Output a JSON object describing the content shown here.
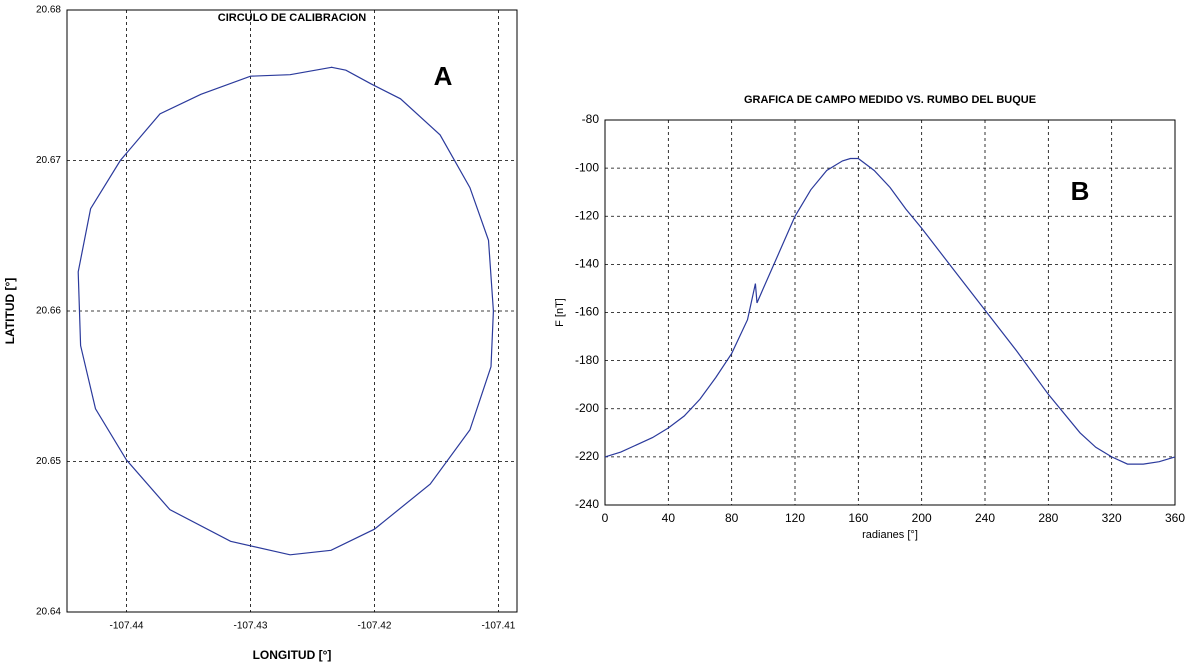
{
  "chart_data": [
    {
      "type": "line",
      "title": "CIRCULO DE CALIBRACION",
      "x_label": "LONGITUD [°]",
      "y_label": "LATITUD [°]",
      "annotation": "A",
      "x": [
        -107.4234,
        -107.4268,
        -107.43,
        -107.434,
        -107.4373,
        -107.4405,
        -107.4429,
        -107.4439,
        -107.4437,
        -107.4425,
        -107.44,
        -107.4365,
        -107.4316,
        -107.4268,
        -107.4235,
        -107.42,
        -107.4155,
        -107.4123,
        -107.4106,
        -107.4104,
        -107.4108,
        -107.4123,
        -107.4147,
        -107.4179,
        -107.4203,
        -107.4223,
        -107.4235
      ],
      "values": [
        20.6762,
        20.6757,
        20.6756,
        20.6744,
        20.6731,
        20.67,
        20.6668,
        20.6626,
        20.6577,
        20.6535,
        20.6501,
        20.6468,
        20.6447,
        20.6438,
        20.6441,
        20.6455,
        20.6485,
        20.6521,
        20.6563,
        20.66,
        20.6647,
        20.6682,
        20.6717,
        20.6741,
        20.6751,
        20.676,
        20.6762
      ],
      "color": "#2b3a9c",
      "xlim": [
        -107.4448,
        -107.4085
      ],
      "xticks": [
        -107.44,
        -107.43,
        -107.42,
        -107.41
      ],
      "ylim": [
        20.64,
        20.68
      ],
      "yticks": [
        20.64,
        20.65,
        20.66,
        20.67,
        20.68
      ],
      "grid": true
    },
    {
      "type": "line",
      "title": "GRAFICA DE CAMPO MEDIDO VS. RUMBO DEL BUQUE",
      "x_label": "radianes [°]",
      "y_label": "F [nT]",
      "annotation": "B",
      "x": [
        0,
        10,
        20,
        30,
        40,
        50,
        60,
        70,
        80,
        90,
        95,
        96,
        100,
        110,
        120,
        130,
        140,
        150,
        155,
        160,
        170,
        180,
        190,
        200,
        220,
        240,
        260,
        280,
        300,
        310,
        320,
        330,
        340,
        350,
        360
      ],
      "values": [
        -220,
        -218,
        -215,
        -212,
        -208,
        -203,
        -196,
        -187,
        -177,
        -163,
        -148,
        -156,
        -150,
        -135,
        -120,
        -109,
        -101,
        -97,
        -96,
        -96,
        -101,
        -108,
        -117,
        -125,
        -142,
        -159,
        -176,
        -194,
        -210,
        -216,
        -220,
        -223,
        -223,
        -222,
        -220
      ],
      "color": "#2b3a9c",
      "xlim": [
        0,
        360
      ],
      "xticks": [
        0,
        40,
        80,
        120,
        160,
        200,
        240,
        280,
        320,
        360
      ],
      "ylim": [
        -240,
        -80
      ],
      "yticks": [
        -240,
        -220,
        -200,
        -180,
        -160,
        -140,
        -120,
        -100,
        -80
      ],
      "grid": true
    }
  ]
}
